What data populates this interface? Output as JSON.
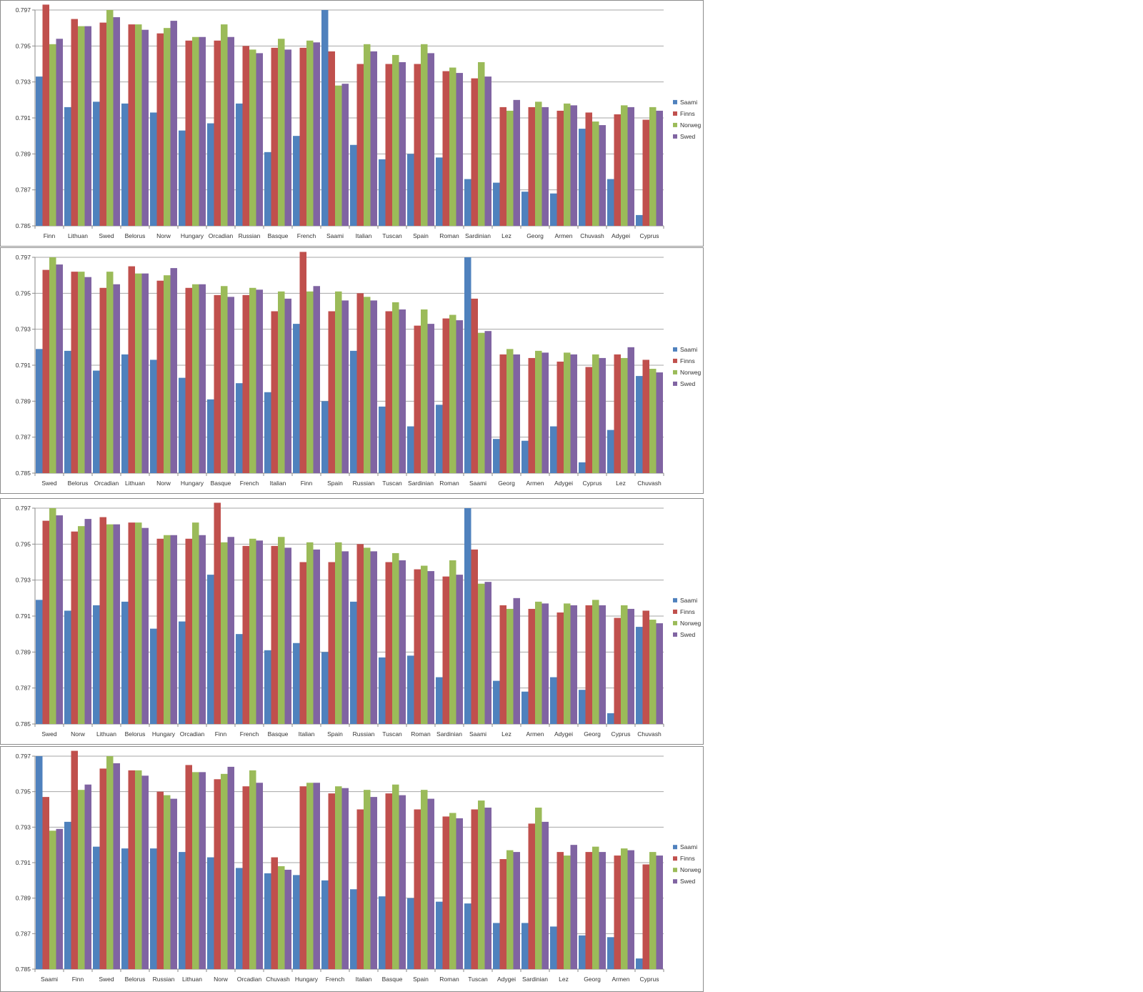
{
  "chart_data": [
    {
      "type": "bar",
      "ylim": [
        0.785,
        0.797
      ],
      "yticks": [
        "0.785",
        "0.787",
        "0.789",
        "0.791",
        "0.793",
        "0.795",
        "0.797"
      ],
      "grid": true,
      "legend_position": "right",
      "categories": [
        "Finn",
        "Lithuan",
        "Swed",
        "Belorus",
        "Norw",
        "Hungary",
        "Orcadian",
        "Russian",
        "Basque",
        "French",
        "Saami",
        "Italian",
        "Tuscan",
        "Spain",
        "Roman",
        "Sardinian",
        "Lez",
        "Georg",
        "Armen",
        "Chuvash",
        "Adygei",
        "Cyprus"
      ],
      "series": [
        {
          "name": "Saami",
          "color": "#4f81bd",
          "values": [
            0.7933,
            0.7916,
            0.7919,
            0.7918,
            0.7913,
            0.7903,
            0.7907,
            0.7918,
            0.7891,
            0.79,
            0.797,
            0.7895,
            0.7887,
            0.789,
            0.7888,
            0.7876,
            0.7874,
            0.7869,
            0.7868,
            0.7904,
            0.7876,
            0.7856
          ]
        },
        {
          "name": "Finns",
          "color": "#c0504d",
          "values": [
            0.7973,
            0.7965,
            0.7963,
            0.7962,
            0.7957,
            0.7953,
            0.7953,
            0.795,
            0.7949,
            0.7949,
            0.7947,
            0.794,
            0.794,
            0.794,
            0.7936,
            0.7932,
            0.7916,
            0.7916,
            0.7914,
            0.7913,
            0.7912,
            0.7909
          ]
        },
        {
          "name": "Norweg",
          "color": "#9bbb59",
          "values": [
            0.7951,
            0.7961,
            0.797,
            0.7962,
            0.796,
            0.7955,
            0.7962,
            0.7948,
            0.7954,
            0.7953,
            0.7928,
            0.7951,
            0.7945,
            0.7951,
            0.7938,
            0.7941,
            0.7914,
            0.7919,
            0.7918,
            0.7908,
            0.7917,
            0.7916
          ]
        },
        {
          "name": "Swed",
          "color": "#8064a2",
          "values": [
            0.7954,
            0.7961,
            0.7966,
            0.7959,
            0.7964,
            0.7955,
            0.7955,
            0.7946,
            0.7948,
            0.7952,
            0.7929,
            0.7947,
            0.7941,
            0.7946,
            0.7935,
            0.7933,
            0.792,
            0.7916,
            0.7917,
            0.7906,
            0.7916,
            0.7914
          ]
        }
      ]
    },
    {
      "type": "bar",
      "ylim": [
        0.785,
        0.797
      ],
      "yticks": [
        "0.785",
        "0.787",
        "0.789",
        "0.791",
        "0.793",
        "0.795",
        "0.797"
      ],
      "grid": true,
      "legend_position": "right",
      "categories": [
        "Swed",
        "Belorus",
        "Orcadian",
        "Lithuan",
        "Norw",
        "Hungary",
        "Basque",
        "French",
        "Italian",
        "Finn",
        "Spain",
        "Russian",
        "Tuscan",
        "Sardinian",
        "Roman",
        "Saami",
        "Georg",
        "Armen",
        "Adygei",
        "Cyprus",
        "Lez",
        "Chuvash"
      ],
      "series": [
        {
          "name": "Saami",
          "color": "#4f81bd",
          "values": [
            0.7919,
            0.7918,
            0.7907,
            0.7916,
            0.7913,
            0.7903,
            0.7891,
            0.79,
            0.7895,
            0.7933,
            0.789,
            0.7918,
            0.7887,
            0.7876,
            0.7888,
            0.797,
            0.7869,
            0.7868,
            0.7876,
            0.7856,
            0.7874,
            0.7904
          ]
        },
        {
          "name": "Finns",
          "color": "#c0504d",
          "values": [
            0.7963,
            0.7962,
            0.7953,
            0.7965,
            0.7957,
            0.7953,
            0.7949,
            0.7949,
            0.794,
            0.7973,
            0.794,
            0.795,
            0.794,
            0.7932,
            0.7936,
            0.7947,
            0.7916,
            0.7914,
            0.7912,
            0.7909,
            0.7916,
            0.7913
          ]
        },
        {
          "name": "Norweg",
          "color": "#9bbb59",
          "values": [
            0.797,
            0.7962,
            0.7962,
            0.7961,
            0.796,
            0.7955,
            0.7954,
            0.7953,
            0.7951,
            0.7951,
            0.7951,
            0.7948,
            0.7945,
            0.7941,
            0.7938,
            0.7928,
            0.7919,
            0.7918,
            0.7917,
            0.7916,
            0.7914,
            0.7908
          ]
        },
        {
          "name": "Swed",
          "color": "#8064a2",
          "values": [
            0.7966,
            0.7959,
            0.7955,
            0.7961,
            0.7964,
            0.7955,
            0.7948,
            0.7952,
            0.7947,
            0.7954,
            0.7946,
            0.7946,
            0.7941,
            0.7933,
            0.7935,
            0.7929,
            0.7916,
            0.7917,
            0.7916,
            0.7914,
            0.792,
            0.7906
          ]
        }
      ]
    },
    {
      "type": "bar",
      "ylim": [
        0.785,
        0.797
      ],
      "yticks": [
        "0.785",
        "0.787",
        "0.789",
        "0.791",
        "0.793",
        "0.795",
        "0.797"
      ],
      "grid": true,
      "legend_position": "right",
      "categories": [
        "Swed",
        "Norw",
        "Lithuan",
        "Belorus",
        "Hungary",
        "Orcadian",
        "Finn",
        "French",
        "Basque",
        "Italian",
        "Spain",
        "Russian",
        "Tuscan",
        "Roman",
        "Sardinian",
        "Saami",
        "Lez",
        "Armen",
        "Adygei",
        "Georg",
        "Cyprus",
        "Chuvash"
      ],
      "series": [
        {
          "name": "Saami",
          "color": "#4f81bd",
          "values": [
            0.7919,
            0.7913,
            0.7916,
            0.7918,
            0.7903,
            0.7907,
            0.7933,
            0.79,
            0.7891,
            0.7895,
            0.789,
            0.7918,
            0.7887,
            0.7888,
            0.7876,
            0.797,
            0.7874,
            0.7868,
            0.7876,
            0.7869,
            0.7856,
            0.7904
          ]
        },
        {
          "name": "Finns",
          "color": "#c0504d",
          "values": [
            0.7963,
            0.7957,
            0.7965,
            0.7962,
            0.7953,
            0.7953,
            0.7973,
            0.7949,
            0.7949,
            0.794,
            0.794,
            0.795,
            0.794,
            0.7936,
            0.7932,
            0.7947,
            0.7916,
            0.7914,
            0.7912,
            0.7916,
            0.7909,
            0.7913
          ]
        },
        {
          "name": "Norweg",
          "color": "#9bbb59",
          "values": [
            0.797,
            0.796,
            0.7961,
            0.7962,
            0.7955,
            0.7962,
            0.7951,
            0.7953,
            0.7954,
            0.7951,
            0.7951,
            0.7948,
            0.7945,
            0.7938,
            0.7941,
            0.7928,
            0.7914,
            0.7918,
            0.7917,
            0.7919,
            0.7916,
            0.7908
          ]
        },
        {
          "name": "Swed",
          "color": "#8064a2",
          "values": [
            0.7966,
            0.7964,
            0.7961,
            0.7959,
            0.7955,
            0.7955,
            0.7954,
            0.7952,
            0.7948,
            0.7947,
            0.7946,
            0.7946,
            0.7941,
            0.7935,
            0.7933,
            0.7929,
            0.792,
            0.7917,
            0.7916,
            0.7916,
            0.7914,
            0.7906
          ]
        }
      ]
    },
    {
      "type": "bar",
      "ylim": [
        0.785,
        0.797
      ],
      "yticks": [
        "0.785",
        "0.787",
        "0.789",
        "0.791",
        "0.793",
        "0.795",
        "0.797"
      ],
      "grid": true,
      "legend_position": "right",
      "categories": [
        "Saami",
        "Finn",
        "Swed",
        "Belorus",
        "Russian",
        "Lithuan",
        "Norw",
        "Orcadian",
        "Chuvash",
        "Hungary",
        "French",
        "Italian",
        "Basque",
        "Spain",
        "Roman",
        "Tuscan",
        "Adygei",
        "Sardinian",
        "Lez",
        "Georg",
        "Armen",
        "Cyprus"
      ],
      "series": [
        {
          "name": "Saami",
          "color": "#4f81bd",
          "values": [
            0.797,
            0.7933,
            0.7919,
            0.7918,
            0.7918,
            0.7916,
            0.7913,
            0.7907,
            0.7904,
            0.7903,
            0.79,
            0.7895,
            0.7891,
            0.789,
            0.7888,
            0.7887,
            0.7876,
            0.7876,
            0.7874,
            0.7869,
            0.7868,
            0.7856
          ]
        },
        {
          "name": "Finns",
          "color": "#c0504d",
          "values": [
            0.7947,
            0.7973,
            0.7963,
            0.7962,
            0.795,
            0.7965,
            0.7957,
            0.7953,
            0.7913,
            0.7953,
            0.7949,
            0.794,
            0.7949,
            0.794,
            0.7936,
            0.794,
            0.7912,
            0.7932,
            0.7916,
            0.7916,
            0.7914,
            0.7909
          ]
        },
        {
          "name": "Norweg",
          "color": "#9bbb59",
          "values": [
            0.7928,
            0.7951,
            0.797,
            0.7962,
            0.7948,
            0.7961,
            0.796,
            0.7962,
            0.7908,
            0.7955,
            0.7953,
            0.7951,
            0.7954,
            0.7951,
            0.7938,
            0.7945,
            0.7917,
            0.7941,
            0.7914,
            0.7919,
            0.7918,
            0.7916
          ]
        },
        {
          "name": "Swed",
          "color": "#8064a2",
          "values": [
            0.7929,
            0.7954,
            0.7966,
            0.7959,
            0.7946,
            0.7961,
            0.7964,
            0.7955,
            0.7906,
            0.7955,
            0.7952,
            0.7947,
            0.7948,
            0.7946,
            0.7935,
            0.7941,
            0.7916,
            0.7933,
            0.792,
            0.7916,
            0.7917,
            0.7914
          ]
        }
      ]
    }
  ]
}
